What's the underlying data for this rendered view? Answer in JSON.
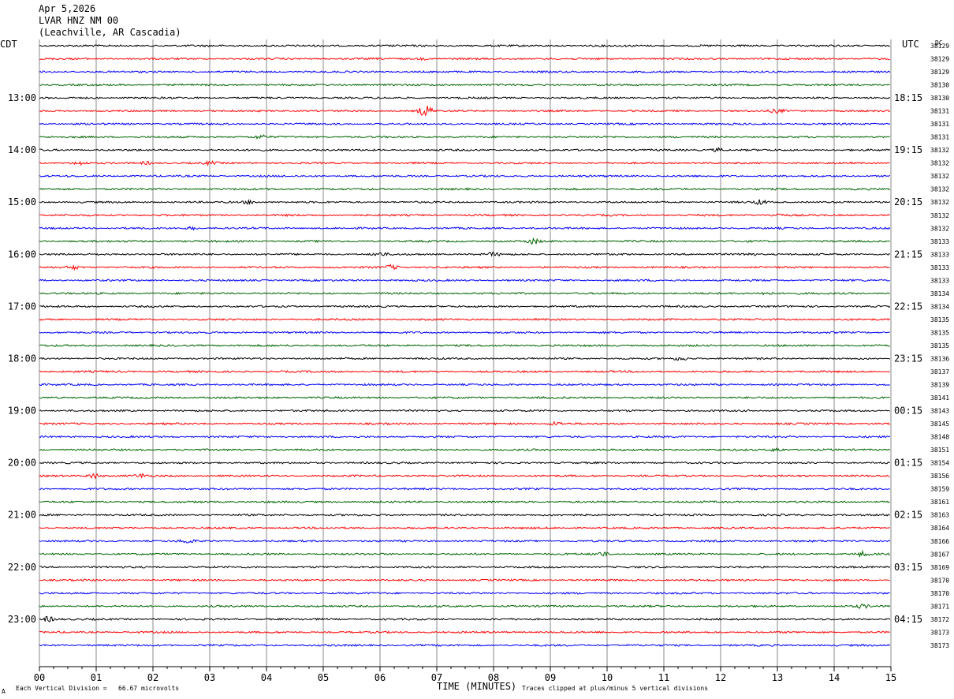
{
  "header": {
    "date": "Apr 5,2026",
    "station": "LVAR HNZ NM 00",
    "location": "(Leachville, AR Cascadia)"
  },
  "left_timezone": "CDT",
  "right_timezone": "UTC",
  "dc_label": "DC",
  "footer": {
    "scale_text": "Each Vertical Division =   66.67 microvolts",
    "xlabel": "TIME (MINUTES)",
    "clip_text": "Traces clipped at plus/minus 5 vertical divisions",
    "corner_mark": "A"
  },
  "colors": {
    "trace_cycle": [
      "#000000",
      "#ff0000",
      "#0000ff",
      "#006400"
    ],
    "grid": "#888888"
  },
  "chart_data": {
    "type": "line",
    "title": "LVAR HNZ NM 00",
    "xlabel": "TIME (MINUTES)",
    "xlim": [
      0,
      15
    ],
    "x_ticks": [
      "00",
      "01",
      "02",
      "03",
      "04",
      "05",
      "06",
      "07",
      "08",
      "09",
      "10",
      "11",
      "12",
      "13",
      "14",
      "15"
    ],
    "left_hour_labels": [
      "13:00",
      "14:00",
      "15:00",
      "16:00",
      "17:00",
      "18:00",
      "19:00",
      "20:00",
      "21:00",
      "22:00",
      "23:00"
    ],
    "right_hour_labels": [
      "18:15",
      "19:15",
      "20:15",
      "21:15",
      "22:15",
      "23:15",
      "00:15",
      "01:15",
      "02:15",
      "03:15",
      "04:15"
    ],
    "dc_values": [
      "38129",
      "38129",
      "38129",
      "38130",
      "38130",
      "38131",
      "38131",
      "38131",
      "38132",
      "38132",
      "38132",
      "38132",
      "38132",
      "38132",
      "38132",
      "38133",
      "38133",
      "38133",
      "38133",
      "38134",
      "38134",
      "38135",
      "38135",
      "38135",
      "38136",
      "38137",
      "38139",
      "38141",
      "38143",
      "38145",
      "38148",
      "38151",
      "38154",
      "38156",
      "38159",
      "38161",
      "38163",
      "38164",
      "38166",
      "38167",
      "38169",
      "38170",
      "38170",
      "38171",
      "38172",
      "38173",
      "38173"
    ],
    "events": [
      {
        "trace": 1,
        "minute": 6.75,
        "amp": 1.0
      },
      {
        "trace": 5,
        "minute": 6.8,
        "amp": 7.0
      },
      {
        "trace": 5,
        "minute": 13.0,
        "amp": 2.0
      },
      {
        "trace": 7,
        "minute": 3.9,
        "amp": 2.0
      },
      {
        "trace": 8,
        "minute": 11.95,
        "amp": 2.0
      },
      {
        "trace": 9,
        "minute": 0.7,
        "amp": 2.0
      },
      {
        "trace": 9,
        "minute": 1.9,
        "amp": 1.5
      },
      {
        "trace": 9,
        "minute": 3.0,
        "amp": 1.5
      },
      {
        "trace": 12,
        "minute": 3.7,
        "amp": 2.0
      },
      {
        "trace": 12,
        "minute": 12.7,
        "amp": 2.5
      },
      {
        "trace": 13,
        "minute": 13.0,
        "amp": 2.0
      },
      {
        "trace": 14,
        "minute": 2.7,
        "amp": 1.5
      },
      {
        "trace": 15,
        "minute": 8.7,
        "amp": 3.0
      },
      {
        "trace": 16,
        "minute": 6.0,
        "amp": 2.0
      },
      {
        "trace": 16,
        "minute": 8.0,
        "amp": 2.0
      },
      {
        "trace": 16,
        "minute": 12.5,
        "amp": 2.0
      },
      {
        "trace": 17,
        "minute": 0.6,
        "amp": 2.0
      },
      {
        "trace": 17,
        "minute": 6.2,
        "amp": 2.5
      },
      {
        "trace": 19,
        "minute": 12.8,
        "amp": 2.0
      },
      {
        "trace": 24,
        "minute": 11.3,
        "amp": 2.0
      },
      {
        "trace": 29,
        "minute": 9.1,
        "amp": 2.0
      },
      {
        "trace": 31,
        "minute": 13.0,
        "amp": 2.0
      },
      {
        "trace": 33,
        "minute": 0.95,
        "amp": 3.0
      },
      {
        "trace": 33,
        "minute": 1.8,
        "amp": 2.0
      },
      {
        "trace": 38,
        "minute": 2.6,
        "amp": 2.5
      },
      {
        "trace": 39,
        "minute": 9.9,
        "amp": 2.5
      },
      {
        "trace": 39,
        "minute": 14.5,
        "amp": 2.5
      },
      {
        "trace": 43,
        "minute": 14.5,
        "amp": 2.0
      },
      {
        "trace": 44,
        "minute": 0.15,
        "amp": 3.0
      }
    ]
  }
}
